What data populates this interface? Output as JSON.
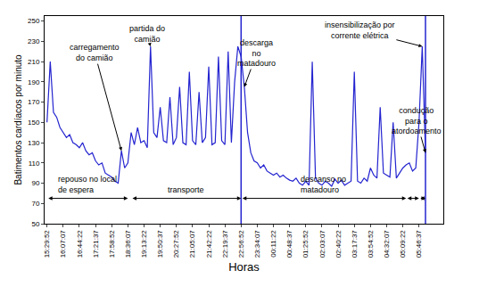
{
  "chart_data": {
    "type": "line",
    "x_label": "Horas",
    "y_label": "Batimentos cardíacos por minuto",
    "categories": [
      "15:29:52",
      null,
      null,
      null,
      null,
      "16:07:07",
      null,
      null,
      null,
      null,
      "16:44:22",
      null,
      null,
      null,
      null,
      "17:21:37",
      null,
      null,
      null,
      null,
      "17:58:52",
      null,
      null,
      null,
      null,
      "18:36:07",
      null,
      null,
      null,
      null,
      "19:13:22",
      null,
      null,
      null,
      null,
      "19:50:37",
      null,
      null,
      null,
      null,
      "20:27:52",
      null,
      null,
      null,
      null,
      "21:05:07",
      null,
      null,
      null,
      null,
      "21:42:22",
      null,
      null,
      null,
      null,
      "22:19:37",
      null,
      null,
      null,
      null,
      "22:56:52",
      null,
      null,
      null,
      null,
      "23:34:07",
      null,
      null,
      null,
      null,
      "00:11:22",
      null,
      null,
      null,
      null,
      "00:48:37",
      null,
      null,
      null,
      null,
      "01:25:52",
      null,
      null,
      null,
      null,
      "02:03:07",
      null,
      null,
      null,
      null,
      "02:40:22",
      null,
      null,
      null,
      null,
      "03:17:37",
      null,
      null,
      null,
      null,
      "03:54:52",
      null,
      null,
      null,
      null,
      "04:32:07",
      null,
      null,
      null,
      null,
      "05:09:22",
      null,
      null,
      null,
      null,
      "05:46:37",
      null,
      null
    ],
    "values": [
      150,
      210,
      160,
      155,
      145,
      140,
      135,
      138,
      130,
      128,
      125,
      130,
      122,
      118,
      120,
      112,
      108,
      110,
      100,
      98,
      96,
      92,
      90,
      122,
      105,
      110,
      140,
      128,
      145,
      130,
      132,
      125,
      225,
      140,
      135,
      165,
      132,
      130,
      175,
      128,
      135,
      185,
      130,
      128,
      200,
      132,
      128,
      180,
      130,
      135,
      205,
      128,
      130,
      215,
      132,
      128,
      220,
      130,
      190,
      225,
      215,
      185,
      140,
      120,
      112,
      110,
      105,
      108,
      102,
      100,
      98,
      100,
      96,
      98,
      95,
      93,
      92,
      95,
      90,
      88,
      92,
      88,
      210,
      95,
      90,
      88,
      92,
      90,
      87,
      94,
      90,
      93,
      88,
      90,
      92,
      200,
      92,
      90,
      95,
      92,
      105,
      98,
      95,
      165,
      100,
      98,
      96,
      150,
      95,
      100,
      105,
      108,
      110,
      102,
      105,
      150,
      225,
      120
    ],
    "color": "#2424d0",
    "ylim": [
      50,
      255
    ],
    "yticks": [
      50,
      70,
      90,
      110,
      130,
      150,
      170,
      190,
      210,
      230,
      250
    ],
    "grid": false,
    "annotations": [
      {
        "text": "carregamento do camião",
        "x": 23,
        "y": 122
      },
      {
        "text": "partida do camião",
        "x": 32,
        "y": 225
      },
      {
        "text": "descarga no matadouro",
        "x": 61,
        "y": 185
      },
      {
        "text": "insensibilização por corrente elétrica",
        "x": 116,
        "y": 225
      },
      {
        "text": "condução para o atordoamento",
        "x": 117,
        "y": 120
      }
    ],
    "phases": [
      {
        "text": "repouso no local de espera",
        "start": 0,
        "end": 25,
        "y": 75
      },
      {
        "text": "transporte",
        "start": 26,
        "end": 60,
        "y": 75
      },
      {
        "text": "descanso no matadouro",
        "start": 60,
        "end": 111,
        "y": 75
      },
      {
        "start": 111,
        "end": 115,
        "y": 75
      },
      {
        "start": 115,
        "end": 117,
        "y": 75
      }
    ],
    "boundaries": [
      60,
      117
    ]
  }
}
